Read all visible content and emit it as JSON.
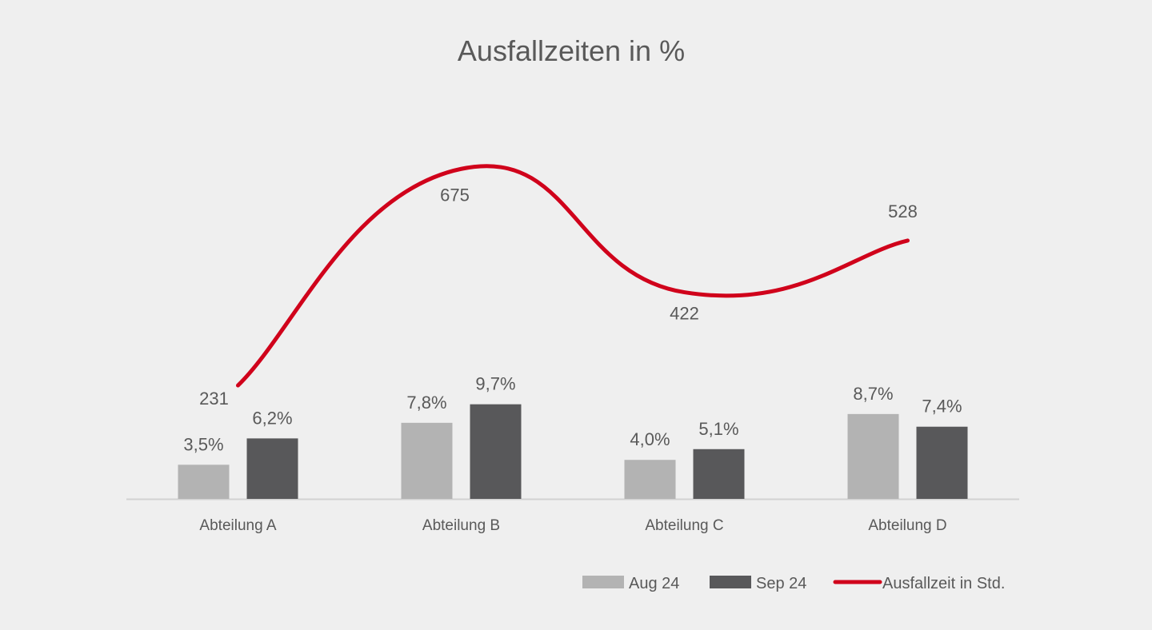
{
  "chart_data": {
    "type": "bar",
    "title": "Ausfallzeiten in %",
    "categories": [
      "Abteilung A",
      "Abteilung B",
      "Abteilung C",
      "Abteilung D"
    ],
    "series": [
      {
        "name": "Aug 24",
        "kind": "bar",
        "color": "#b3b3b3",
        "values": [
          3.5,
          7.8,
          4.0,
          8.7
        ],
        "labels": [
          "3,5%",
          "7,8%",
          "4,0%",
          "8,7%"
        ]
      },
      {
        "name": "Sep 24",
        "kind": "bar",
        "color": "#58585a",
        "values": [
          6.2,
          9.7,
          5.1,
          7.4
        ],
        "labels": [
          "6,2%",
          "9,7%",
          "5,1%",
          "7,4%"
        ]
      },
      {
        "name": "Ausfallzeit in Std.",
        "kind": "line",
        "smooth": true,
        "color": "#d0021b",
        "values": [
          231,
          675,
          422,
          528
        ],
        "labels": [
          "231",
          "675",
          "422",
          "528"
        ]
      }
    ],
    "ylim": [
      0,
      10
    ],
    "y2lim": [
      0,
      750
    ],
    "grid": false,
    "legend": "bottom-right"
  }
}
